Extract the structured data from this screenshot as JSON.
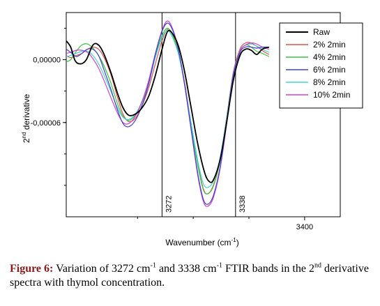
{
  "chart_data": {
    "type": "line",
    "xlabel": "Wavenumber (cm-1)",
    "ylabel": "2nd derivative",
    "xlim": [
      3186,
      3432
    ],
    "ylim": [
      -0.00015,
      4.5e-05
    ],
    "xticks": [
      {
        "value": 3400,
        "label": "3400"
      }
    ],
    "yticks": [
      {
        "value": 0.0,
        "label": "0,00000"
      },
      {
        "value": -6e-05,
        "label": "-0,00006"
      }
    ],
    "vlines": [
      {
        "x": 3272,
        "label": "3272"
      },
      {
        "x": 3338,
        "label": "3338"
      }
    ],
    "legend_position": "top-right",
    "series": [
      {
        "name": "Raw",
        "color": "#000000",
        "points": [
          [
            3186,
            1.8e-05
          ],
          [
            3190,
            1.2e-05
          ],
          [
            3194,
            -1e-06
          ],
          [
            3199,
            -4e-06
          ],
          [
            3204,
            0.0
          ],
          [
            3210,
            1.4e-05
          ],
          [
            3215,
            1.4e-05
          ],
          [
            3220,
            5e-06
          ],
          [
            3226,
            -1.2e-05
          ],
          [
            3232,
            -3.2e-05
          ],
          [
            3237,
            -4.6e-05
          ],
          [
            3242,
            -5.3e-05
          ],
          [
            3248,
            -5.2e-05
          ],
          [
            3254,
            -4.6e-05
          ],
          [
            3260,
            -3.5e-05
          ],
          [
            3266,
            -1.5e-05
          ],
          [
            3272,
            1e-05
          ],
          [
            3277,
            2.7e-05
          ],
          [
            3282,
            2.4e-05
          ],
          [
            3287,
            1.2e-05
          ],
          [
            3292,
            -1e-05
          ],
          [
            3298,
            -4.5e-05
          ],
          [
            3304,
            -8e-05
          ],
          [
            3310,
            -0.000107
          ],
          [
            3314,
            -0.000116
          ],
          [
            3318,
            -0.000115
          ],
          [
            3324,
            -9.6e-05
          ],
          [
            3330,
            -6e-05
          ],
          [
            3336,
            -2e-05
          ],
          [
            3342,
            4e-06
          ],
          [
            3347,
            1e-05
          ],
          [
            3352,
            9e-06
          ],
          [
            3357,
            5e-06
          ],
          [
            3362,
            1e-05
          ],
          [
            3368,
            1.2e-05
          ]
        ]
      },
      {
        "name": "2% 2min",
        "color": "#e05050",
        "points": [
          [
            3186,
            4e-06
          ],
          [
            3190,
            2e-06
          ],
          [
            3195,
            4e-06
          ],
          [
            3200,
            6e-06
          ],
          [
            3205,
            1e-05
          ],
          [
            3210,
            1.2e-05
          ],
          [
            3215,
            1e-05
          ],
          [
            3220,
            2e-06
          ],
          [
            3226,
            -1.4e-05
          ],
          [
            3232,
            -3.6e-05
          ],
          [
            3237,
            -5.2e-05
          ],
          [
            3242,
            -5.9e-05
          ],
          [
            3248,
            -5.6e-05
          ],
          [
            3254,
            -4.4e-05
          ],
          [
            3260,
            -2.7e-05
          ],
          [
            3266,
            -4e-06
          ],
          [
            3272,
            1.8e-05
          ],
          [
            3277,
            2.9e-05
          ],
          [
            3282,
            2.3e-05
          ],
          [
            3287,
            6e-06
          ],
          [
            3292,
            -2e-05
          ],
          [
            3298,
            -6e-05
          ],
          [
            3304,
            -9.8e-05
          ],
          [
            3309,
            -0.000123
          ],
          [
            3313,
            -0.000128
          ],
          [
            3318,
            -0.00012
          ],
          [
            3324,
            -9.6e-05
          ],
          [
            3330,
            -5.5e-05
          ],
          [
            3336,
            -1.2e-05
          ],
          [
            3342,
            1e-05
          ],
          [
            3347,
            1.6e-05
          ],
          [
            3352,
            1.6e-05
          ],
          [
            3358,
            1.2e-05
          ],
          [
            3363,
            8e-06
          ],
          [
            3368,
            5e-06
          ]
        ]
      },
      {
        "name": "4% 2min",
        "color": "#3dc23d",
        "points": [
          [
            3186,
            -2e-06
          ],
          [
            3190,
            0.0
          ],
          [
            3195,
            8e-06
          ],
          [
            3200,
            1.4e-05
          ],
          [
            3205,
            1.5e-05
          ],
          [
            3210,
            1.1e-05
          ],
          [
            3215,
            4e-06
          ],
          [
            3220,
            -6e-06
          ],
          [
            3226,
            -2.2e-05
          ],
          [
            3232,
            -4.2e-05
          ],
          [
            3237,
            -5.4e-05
          ],
          [
            3242,
            -5.8e-05
          ],
          [
            3248,
            -5.3e-05
          ],
          [
            3254,
            -4.1e-05
          ],
          [
            3260,
            -2.3e-05
          ],
          [
            3266,
            3e-06
          ],
          [
            3272,
            2.3e-05
          ],
          [
            3277,
            3e-05
          ],
          [
            3282,
            2.2e-05
          ],
          [
            3287,
            5e-06
          ],
          [
            3292,
            -2.2e-05
          ],
          [
            3298,
            -6.2e-05
          ],
          [
            3304,
            -0.0001
          ],
          [
            3309,
            -0.000124
          ],
          [
            3313,
            -0.000128
          ],
          [
            3318,
            -0.000121
          ],
          [
            3324,
            -9.7e-05
          ],
          [
            3330,
            -5.8e-05
          ],
          [
            3336,
            -1.5e-05
          ],
          [
            3342,
            8e-06
          ],
          [
            3347,
            1.4e-05
          ],
          [
            3352,
            1.2e-05
          ],
          [
            3357,
            8e-06
          ],
          [
            3362,
            6e-06
          ],
          [
            3368,
            3e-06
          ]
        ]
      },
      {
        "name": "6% 2min",
        "color": "#4040d0",
        "points": [
          [
            3186,
            1e-05
          ],
          [
            3190,
            7e-06
          ],
          [
            3195,
            3e-06
          ],
          [
            3200,
            6e-06
          ],
          [
            3205,
            1e-05
          ],
          [
            3210,
            1e-05
          ],
          [
            3215,
            4e-06
          ],
          [
            3220,
            -1e-05
          ],
          [
            3226,
            -2.8e-05
          ],
          [
            3232,
            -4.8e-05
          ],
          [
            3237,
            -6.1e-05
          ],
          [
            3242,
            -6.4e-05
          ],
          [
            3248,
            -5.8e-05
          ],
          [
            3254,
            -4.4e-05
          ],
          [
            3260,
            -2.3e-05
          ],
          [
            3266,
            5e-06
          ],
          [
            3272,
            2.7e-05
          ],
          [
            3277,
            3.5e-05
          ],
          [
            3282,
            2.7e-05
          ],
          [
            3287,
            8e-06
          ],
          [
            3292,
            -2.2e-05
          ],
          [
            3298,
            -6.5e-05
          ],
          [
            3304,
            -0.000108
          ],
          [
            3309,
            -0.000133
          ],
          [
            3313,
            -0.000138
          ],
          [
            3318,
            -0.00013
          ],
          [
            3324,
            -0.000103
          ],
          [
            3330,
            -6e-05
          ],
          [
            3336,
            -1.5e-05
          ],
          [
            3342,
            7e-06
          ],
          [
            3347,
            1.2e-05
          ],
          [
            3352,
            1.2e-05
          ],
          [
            3357,
            1.1e-05
          ],
          [
            3362,
            1.2e-05
          ],
          [
            3368,
            1.2e-05
          ]
        ]
      },
      {
        "name": "8% 2min",
        "color": "#40d6d6",
        "points": [
          [
            3186,
            3e-06
          ],
          [
            3190,
            4e-06
          ],
          [
            3195,
            6e-06
          ],
          [
            3200,
            8e-06
          ],
          [
            3205,
            8e-06
          ],
          [
            3210,
            4e-06
          ],
          [
            3215,
            -4e-06
          ],
          [
            3220,
            -1.5e-05
          ],
          [
            3226,
            -3e-05
          ],
          [
            3232,
            -4.6e-05
          ],
          [
            3237,
            -5.5e-05
          ],
          [
            3242,
            -5.7e-05
          ],
          [
            3248,
            -5.2e-05
          ],
          [
            3254,
            -4e-05
          ],
          [
            3260,
            -2.2e-05
          ],
          [
            3266,
            2e-06
          ],
          [
            3272,
            2.1e-05
          ],
          [
            3277,
            2.8e-05
          ],
          [
            3282,
            2e-05
          ],
          [
            3287,
            4e-06
          ],
          [
            3292,
            -2.2e-05
          ],
          [
            3298,
            -6e-05
          ],
          [
            3304,
            -9.6e-05
          ],
          [
            3309,
            -0.000118
          ],
          [
            3313,
            -0.000122
          ],
          [
            3318,
            -0.000116
          ],
          [
            3324,
            -9.4e-05
          ],
          [
            3330,
            -5.6e-05
          ],
          [
            3336,
            -1.4e-05
          ],
          [
            3342,
            8e-06
          ],
          [
            3347,
            1.4e-05
          ],
          [
            3352,
            1.5e-05
          ],
          [
            3357,
            1.3e-05
          ],
          [
            3362,
            1e-05
          ],
          [
            3368,
            7e-06
          ]
        ]
      },
      {
        "name": "10% 2min",
        "color": "#d040d0",
        "points": [
          [
            3186,
            6e-06
          ],
          [
            3190,
            7e-06
          ],
          [
            3195,
            9e-06
          ],
          [
            3200,
            9e-06
          ],
          [
            3205,
            7e-06
          ],
          [
            3210,
            1e-06
          ],
          [
            3215,
            -8e-06
          ],
          [
            3220,
            -2e-05
          ],
          [
            3226,
            -3.6e-05
          ],
          [
            3232,
            -5.1e-05
          ],
          [
            3237,
            -6e-05
          ],
          [
            3242,
            -6.1e-05
          ],
          [
            3248,
            -5.4e-05
          ],
          [
            3254,
            -4e-05
          ],
          [
            3260,
            -2e-05
          ],
          [
            3266,
            6e-06
          ],
          [
            3272,
            2.8e-05
          ],
          [
            3277,
            3.7e-05
          ],
          [
            3282,
            2.8e-05
          ],
          [
            3287,
            8e-06
          ],
          [
            3292,
            -2.2e-05
          ],
          [
            3298,
            -6.6e-05
          ],
          [
            3304,
            -0.00011
          ],
          [
            3309,
            -0.000135
          ],
          [
            3313,
            -0.00014
          ],
          [
            3318,
            -0.000132
          ],
          [
            3324,
            -0.000105
          ],
          [
            3330,
            -6.2e-05
          ],
          [
            3336,
            -1.6e-05
          ],
          [
            3342,
            8e-06
          ],
          [
            3347,
            1.4e-05
          ],
          [
            3352,
            1.6e-05
          ],
          [
            3357,
            1.5e-05
          ],
          [
            3362,
            1.2e-05
          ],
          [
            3368,
            1e-05
          ]
        ]
      }
    ]
  },
  "caption": {
    "figure_label": "Figure 6:",
    "text_1": "Variation of 3272 cm",
    "sup_1": "-1",
    "text_2": " and 3338 cm",
    "sup_2": "-1",
    "text_3": " FTIR bands in the 2",
    "sup_3": "nd",
    "text_4": " derivative spectra with thymol concentration."
  }
}
